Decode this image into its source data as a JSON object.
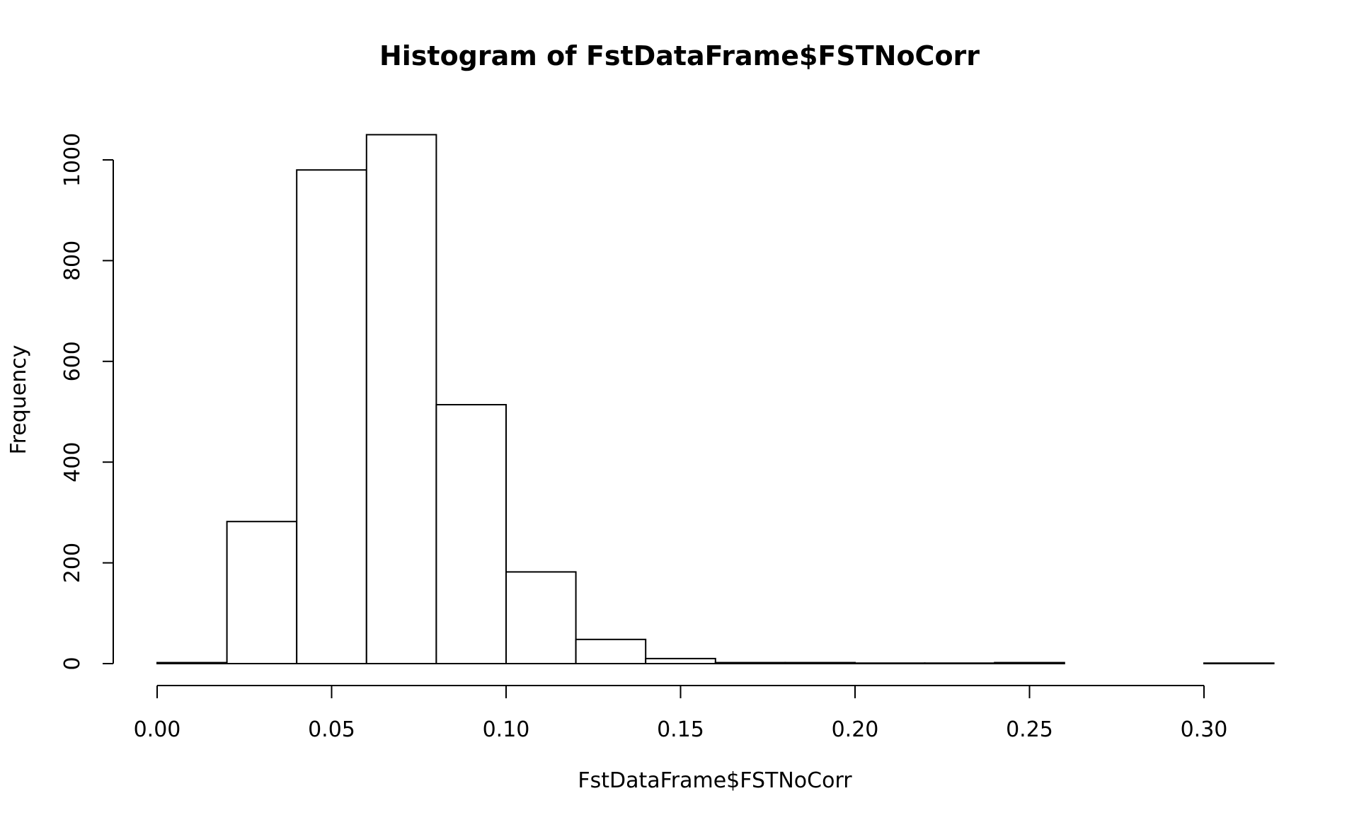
{
  "chart_data": {
    "type": "bar",
    "title": "Histogram of FstDataFrame$FSTNoCorr",
    "xlabel": "FstDataFrame$FSTNoCorr",
    "ylabel": "Frequency",
    "xlim": [
      0.0,
      0.32
    ],
    "ylim": [
      0,
      1050
    ],
    "x_ticks": [
      0.0,
      0.05,
      0.1,
      0.15,
      0.2,
      0.25,
      0.3
    ],
    "x_tick_labels": [
      "0.00",
      "0.05",
      "0.10",
      "0.15",
      "0.20",
      "0.25",
      "0.30"
    ],
    "y_ticks": [
      0,
      200,
      400,
      600,
      800,
      1000
    ],
    "y_tick_labels": [
      "0",
      "200",
      "400",
      "600",
      "800",
      "1000"
    ],
    "bins": [
      {
        "x0": 0.0,
        "x1": 0.02,
        "count": 2
      },
      {
        "x0": 0.02,
        "x1": 0.04,
        "count": 282
      },
      {
        "x0": 0.04,
        "x1": 0.06,
        "count": 980
      },
      {
        "x0": 0.06,
        "x1": 0.08,
        "count": 1050
      },
      {
        "x0": 0.08,
        "x1": 0.1,
        "count": 514
      },
      {
        "x0": 0.1,
        "x1": 0.12,
        "count": 182
      },
      {
        "x0": 0.12,
        "x1": 0.14,
        "count": 48
      },
      {
        "x0": 0.14,
        "x1": 0.16,
        "count": 10
      },
      {
        "x0": 0.16,
        "x1": 0.18,
        "count": 2
      },
      {
        "x0": 0.18,
        "x1": 0.2,
        "count": 2
      },
      {
        "x0": 0.2,
        "x1": 0.22,
        "count": 1
      },
      {
        "x0": 0.22,
        "x1": 0.24,
        "count": 1
      },
      {
        "x0": 0.24,
        "x1": 0.26,
        "count": 2
      },
      {
        "x0": 0.26,
        "x1": 0.28,
        "count": 0
      },
      {
        "x0": 0.28,
        "x1": 0.3,
        "count": 0
      },
      {
        "x0": 0.3,
        "x1": 0.32,
        "count": 1
      }
    ],
    "grid": false,
    "bar_fill": "#ffffff",
    "bar_stroke": "#000000"
  }
}
